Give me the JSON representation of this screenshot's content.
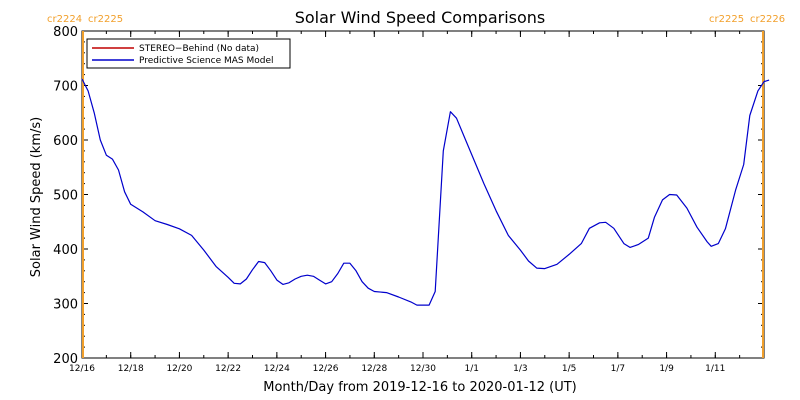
{
  "chart_data": {
    "type": "line",
    "title": "Solar Wind Speed Comparisons",
    "ylabel": "Solar Wind Speed (km/s)",
    "xlabel": "Month/Day from 2019-12-16 to 2020-01-12 (UT)",
    "ylim": [
      200,
      800
    ],
    "xlim": [
      "2019-12-16",
      "2020-01-13"
    ],
    "yticks": [
      "200",
      "300",
      "400",
      "500",
      "600",
      "700",
      "800"
    ],
    "xticks": [
      {
        "label": "12/16",
        "date": "2019-12-16"
      },
      {
        "label": "12/18",
        "date": "2019-12-18"
      },
      {
        "label": "12/20",
        "date": "2019-12-20"
      },
      {
        "label": "12/22",
        "date": "2019-12-22"
      },
      {
        "label": "12/24",
        "date": "2019-12-24"
      },
      {
        "label": "12/26",
        "date": "2019-12-26"
      },
      {
        "label": "12/28",
        "date": "2019-12-28"
      },
      {
        "label": "12/30",
        "date": "2019-12-30"
      },
      {
        "label": "1/1",
        "date": "2020-01-01"
      },
      {
        "label": "1/3",
        "date": "2020-01-03"
      },
      {
        "label": "1/5",
        "date": "2020-01-05"
      },
      {
        "label": "1/7",
        "date": "2020-01-07"
      },
      {
        "label": "1/9",
        "date": "2020-01-09"
      },
      {
        "label": "1/11",
        "date": "2020-01-11"
      }
    ],
    "legend_placement": "top-left",
    "series": [
      {
        "name": "STEREO−Behind (No data)",
        "color": "#c00000",
        "values": []
      },
      {
        "name": "Predictive Science MAS Model",
        "color": "#0000cc",
        "points": [
          [
            "2019-12-16 00:00",
            712
          ],
          [
            "2019-12-16 06:00",
            690
          ],
          [
            "2019-12-16 12:00",
            650
          ],
          [
            "2019-12-16 18:00",
            600
          ],
          [
            "2019-12-17 00:00",
            572
          ],
          [
            "2019-12-17 06:00",
            565
          ],
          [
            "2019-12-17 12:00",
            545
          ],
          [
            "2019-12-17 18:00",
            505
          ],
          [
            "2019-12-18 00:00",
            482
          ],
          [
            "2019-12-18 12:00",
            468
          ],
          [
            "2019-12-19 00:00",
            452
          ],
          [
            "2019-12-19 12:00",
            445
          ],
          [
            "2019-12-20 00:00",
            437
          ],
          [
            "2019-12-20 12:00",
            425
          ],
          [
            "2019-12-21 00:00",
            398
          ],
          [
            "2019-12-21 12:00",
            368
          ],
          [
            "2019-12-22 00:00",
            348
          ],
          [
            "2019-12-22 06:00",
            337
          ],
          [
            "2019-12-22 12:00",
            336
          ],
          [
            "2019-12-22 18:00",
            345
          ],
          [
            "2019-12-23 00:00",
            362
          ],
          [
            "2019-12-23 06:00",
            377
          ],
          [
            "2019-12-23 12:00",
            375
          ],
          [
            "2019-12-23 18:00",
            360
          ],
          [
            "2019-12-24 00:00",
            343
          ],
          [
            "2019-12-24 06:00",
            335
          ],
          [
            "2019-12-24 12:00",
            338
          ],
          [
            "2019-12-24 18:00",
            345
          ],
          [
            "2019-12-25 00:00",
            350
          ],
          [
            "2019-12-25 06:00",
            352
          ],
          [
            "2019-12-25 12:00",
            350
          ],
          [
            "2019-12-25 18:00",
            343
          ],
          [
            "2019-12-26 00:00",
            336
          ],
          [
            "2019-12-26 06:00",
            340
          ],
          [
            "2019-12-26 12:00",
            355
          ],
          [
            "2019-12-26 18:00",
            374
          ],
          [
            "2019-12-27 00:00",
            374
          ],
          [
            "2019-12-27 06:00",
            360
          ],
          [
            "2019-12-27 12:00",
            340
          ],
          [
            "2019-12-27 18:00",
            328
          ],
          [
            "2019-12-28 00:00",
            322
          ],
          [
            "2019-12-28 12:00",
            320
          ],
          [
            "2019-12-29 00:00",
            312
          ],
          [
            "2019-12-29 12:00",
            303
          ],
          [
            "2019-12-29 18:00",
            297
          ],
          [
            "2019-12-30 06:00",
            297
          ],
          [
            "2019-12-30 12:00",
            322
          ],
          [
            "2019-12-30 20:00",
            580
          ],
          [
            "2019-12-31 03:00",
            652
          ],
          [
            "2019-12-31 09:00",
            640
          ],
          [
            "2019-12-31 18:00",
            600
          ],
          [
            "2020-01-01 12:00",
            520
          ],
          [
            "2020-01-02 00:00",
            470
          ],
          [
            "2020-01-02 12:00",
            425
          ],
          [
            "2020-01-03 00:00",
            398
          ],
          [
            "2020-01-03 08:00",
            378
          ],
          [
            "2020-01-03 16:00",
            365
          ],
          [
            "2020-01-04 00:00",
            364
          ],
          [
            "2020-01-04 12:00",
            372
          ],
          [
            "2020-01-05 00:00",
            390
          ],
          [
            "2020-01-05 12:00",
            410
          ],
          [
            "2020-01-05 20:00",
            438
          ],
          [
            "2020-01-06 06:00",
            448
          ],
          [
            "2020-01-06 12:00",
            449
          ],
          [
            "2020-01-06 20:00",
            438
          ],
          [
            "2020-01-07 06:00",
            410
          ],
          [
            "2020-01-07 12:00",
            403
          ],
          [
            "2020-01-07 20:00",
            408
          ],
          [
            "2020-01-08 06:00",
            420
          ],
          [
            "2020-01-08 12:00",
            458
          ],
          [
            "2020-01-08 20:00",
            490
          ],
          [
            "2020-01-09 03:00",
            500
          ],
          [
            "2020-01-09 10:00",
            499
          ],
          [
            "2020-01-09 20:00",
            475
          ],
          [
            "2020-01-10 06:00",
            440
          ],
          [
            "2020-01-10 16:00",
            413
          ],
          [
            "2020-01-10 20:00",
            405
          ],
          [
            "2020-01-11 03:00",
            410
          ],
          [
            "2020-01-11 10:00",
            437
          ],
          [
            "2020-01-11 20:00",
            508
          ],
          [
            "2020-01-12 04:00",
            555
          ],
          [
            "2020-01-12 10:00",
            645
          ],
          [
            "2020-01-12 18:00",
            690
          ],
          [
            "2020-01-13 00:00",
            707
          ],
          [
            "2020-01-13 05:00",
            710
          ]
        ]
      }
    ],
    "carrington_markers": [
      {
        "label_left": "cr2224",
        "label_right": "cr2225",
        "date": "2019-12-16 01:00",
        "color": "#f2a02c"
      },
      {
        "label_left": "cr2225",
        "label_right": "cr2226",
        "date": "2020-01-12 23:00",
        "color": "#f2a02c"
      }
    ]
  }
}
